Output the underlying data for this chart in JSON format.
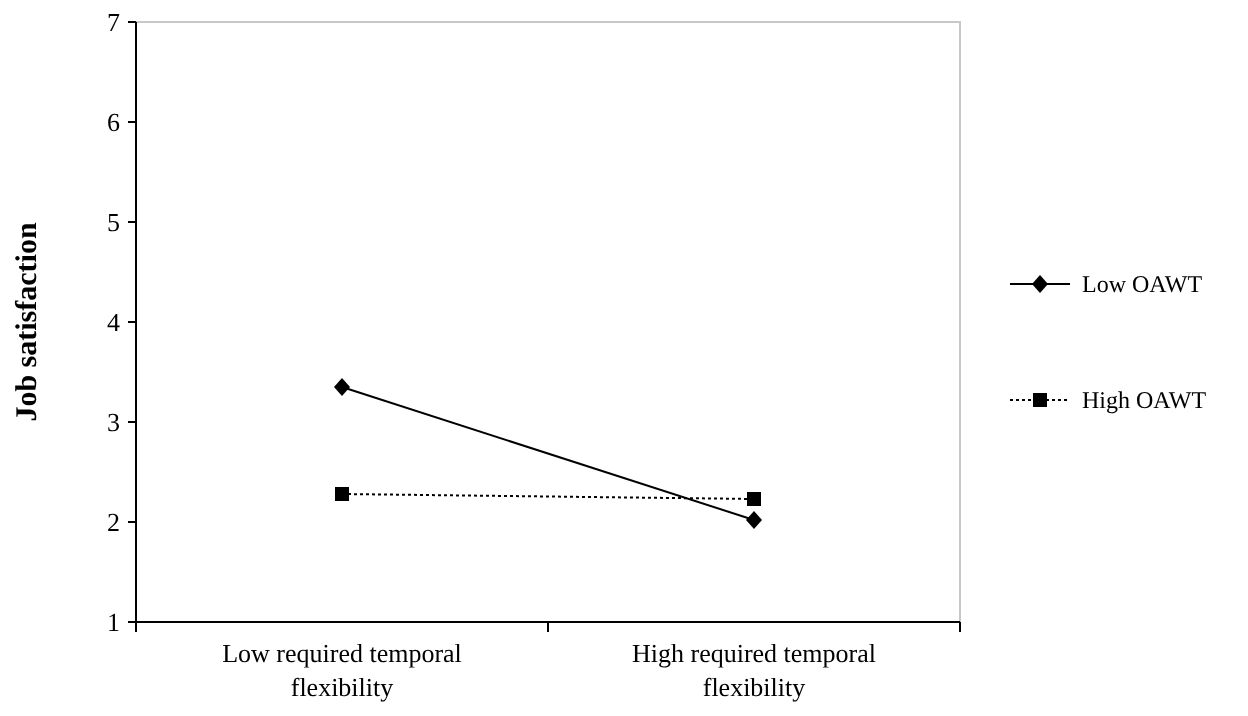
{
  "chart_data": {
    "type": "line",
    "ylabel": "Job satisfaction",
    "categories": [
      "Low required temporal flexibility",
      "High required temporal flexibility"
    ],
    "series": [
      {
        "name": "Low OAWT",
        "color": "#000000",
        "values": [
          3.35,
          2.02
        ],
        "marker": "diamond",
        "line_style": "solid"
      },
      {
        "name": "High OAWT",
        "color": "#000000",
        "values": [
          2.28,
          2.23
        ],
        "marker": "square",
        "line_style": "dotted"
      }
    ],
    "ylim": [
      1,
      7
    ],
    "yticks": [
      1,
      2,
      3,
      4,
      5,
      6,
      7
    ],
    "grid": false,
    "legend": "right"
  }
}
